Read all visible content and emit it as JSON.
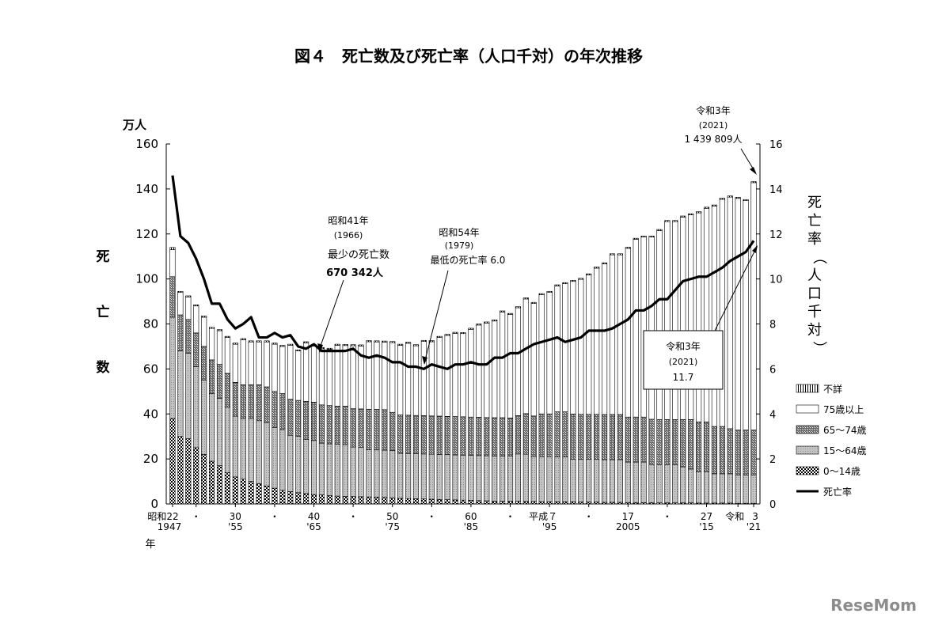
{
  "chart_data": {
    "type": "bar",
    "title": "図４　死亡数及び死亡率（人口千対）の年次推移",
    "ylabel_left_unit": "万人",
    "ylabel_left": "死亡数",
    "ylabel_right": "死亡率（人口千対）",
    "xlabel": "年",
    "ylim_left": [
      0,
      160
    ],
    "ylim_right": [
      0,
      16
    ],
    "yticks_left": [
      0,
      20,
      40,
      60,
      80,
      100,
      120,
      140,
      160
    ],
    "yticks_right": [
      0,
      2,
      4,
      6,
      8,
      10,
      12,
      14,
      16
    ],
    "year_start": 1947,
    "year_end": 2021,
    "x_tick_labels": [
      {
        "year": 1947,
        "era": "昭和22",
        "western": "1947"
      },
      {
        "year": 1950,
        "era": "・",
        "western": ""
      },
      {
        "year": 1955,
        "era": "30",
        "western": "'55"
      },
      {
        "year": 1960,
        "era": "・",
        "western": ""
      },
      {
        "year": 1965,
        "era": "40",
        "western": "'65"
      },
      {
        "year": 1970,
        "era": "・",
        "western": ""
      },
      {
        "year": 1975,
        "era": "50",
        "western": "'75"
      },
      {
        "year": 1980,
        "era": "・",
        "western": ""
      },
      {
        "year": 1985,
        "era": "60",
        "western": "'85"
      },
      {
        "year": 1990,
        "era": "・",
        "western": ""
      },
      {
        "year": 1995,
        "era": "平成７",
        "western": "'95"
      },
      {
        "year": 2000,
        "era": "・",
        "western": ""
      },
      {
        "year": 2005,
        "era": "17",
        "western": "2005"
      },
      {
        "year": 2010,
        "era": "・",
        "western": ""
      },
      {
        "year": 2015,
        "era": "27",
        "western": "'15"
      },
      {
        "year": 2019,
        "era": "令和",
        "western": ""
      },
      {
        "year": 2021,
        "era": "3",
        "western": "'21"
      }
    ],
    "series": [
      {
        "name": "0～14歳",
        "pattern": "checker",
        "values": [
          38,
          30,
          29,
          25,
          22,
          19,
          17,
          14,
          12,
          11,
          10,
          9,
          8,
          7,
          6,
          5.5,
          5,
          4.6,
          4.2,
          4,
          3.7,
          3.5,
          3.4,
          3.3,
          3.2,
          3.1,
          3,
          2.9,
          2.7,
          2.5,
          2.4,
          2.3,
          2.2,
          2.1,
          2,
          1.9,
          1.8,
          1.7,
          1.6,
          1.5,
          1.4,
          1.3,
          1.3,
          1.2,
          1.2,
          1.1,
          1.1,
          1,
          1,
          0.9,
          0.9,
          0.9,
          0.8,
          0.8,
          0.8,
          0.7,
          0.7,
          0.7,
          0.6,
          0.6,
          0.6,
          0.6,
          0.5,
          0.5,
          0.5,
          0.5,
          0.5,
          0.4,
          0.4,
          0.4,
          0.4,
          0.4,
          0.3,
          0.3,
          0.3
        ]
      },
      {
        "name": "15～64歳",
        "pattern": "gray",
        "values": [
          45,
          38,
          38,
          36,
          33,
          30,
          30,
          29,
          27,
          27,
          28,
          28,
          28,
          27,
          27,
          25,
          25,
          24,
          24,
          23,
          23,
          23,
          23,
          22,
          22,
          21,
          21,
          21,
          21,
          20,
          20,
          20,
          20,
          20,
          20,
          20,
          20,
          20,
          20,
          20,
          20,
          20,
          20,
          20,
          21,
          21,
          20,
          20,
          20,
          20,
          20,
          19,
          19,
          19,
          19,
          19,
          19,
          19,
          18,
          18,
          18,
          17,
          17,
          17,
          17,
          16,
          15,
          14,
          14,
          13,
          13,
          13,
          12.5,
          12.5,
          12.5
        ]
      },
      {
        "name": "65～74歳",
        "pattern": "crosshatch",
        "values": [
          18,
          16,
          15,
          15,
          15,
          15,
          15,
          15,
          15,
          15,
          15,
          16,
          16,
          16,
          16,
          16,
          16,
          17,
          17,
          17,
          17,
          17,
          17,
          17,
          17,
          18,
          18,
          18,
          17,
          17,
          17,
          17,
          17,
          17,
          17,
          17,
          17,
          17,
          17,
          17,
          17,
          17,
          17,
          17,
          17,
          18,
          18,
          19,
          19,
          20,
          20,
          20,
          20,
          20,
          20,
          20,
          20,
          20,
          20,
          20,
          20,
          20,
          20,
          20,
          20,
          21,
          22,
          22,
          22,
          21,
          21,
          20,
          20,
          20,
          20
        ]
      },
      {
        "name": "75歳以上",
        "pattern": "white",
        "values": [
          12,
          10,
          10,
          12,
          13,
          14,
          15,
          16,
          17,
          20,
          19,
          19,
          20,
          21,
          21,
          24,
          22,
          26,
          25,
          25,
          25,
          27,
          27,
          28,
          28,
          30,
          30,
          30,
          31,
          31,
          32,
          31,
          33,
          33,
          35,
          36,
          37,
          37,
          39,
          41,
          42,
          43,
          47,
          46,
          48,
          51,
          50,
          53,
          54,
          56,
          57,
          59,
          60,
          62,
          65,
          67,
          71,
          71,
          75,
          79,
          80,
          81,
          84,
          88,
          88,
          90,
          91,
          93,
          95,
          98,
          101,
          103,
          103,
          102,
          110
        ]
      },
      {
        "name": "不詳",
        "pattern": "stripe",
        "values": [
          1,
          0.5,
          0.5,
          0.5,
          0.5,
          0.5,
          0.5,
          0.5,
          0.5,
          0.5,
          0.5,
          0.5,
          0.5,
          0.5,
          0.5,
          0.5,
          0.5,
          0.5,
          0.5,
          0.5,
          0.5,
          0.5,
          0.5,
          0.5,
          0.5,
          0.5,
          0.5,
          0.5,
          0.5,
          0.5,
          0.5,
          0.5,
          0.5,
          0.5,
          0.5,
          0.5,
          0.5,
          0.5,
          0.5,
          0.5,
          0.5,
          0.5,
          0.5,
          0.5,
          0.5,
          0.5,
          0.5,
          0.5,
          0.5,
          0.5,
          0.5,
          0.5,
          0.5,
          0.5,
          0.5,
          0.5,
          0.5,
          0.5,
          0.5,
          0.5,
          0.5,
          0.5,
          0.5,
          0.5,
          0.5,
          0.5,
          0.5,
          0.5,
          0.5,
          0.5,
          0.5,
          0.5,
          0.5,
          0.5,
          0.5
        ]
      }
    ],
    "totals": [
      114,
      95,
      94.5,
      90,
      84,
      77,
      76,
      72,
      69,
      72,
      76,
      68,
      69,
      70,
      69,
      71,
      67,
      68,
      70,
      67,
      68,
      69,
      69,
      71,
      68,
      70,
      70,
      70,
      70,
      69,
      70,
      72,
      72,
      72,
      74,
      75,
      75,
      75,
      75,
      79,
      79,
      78,
      81,
      82,
      84,
      86,
      88,
      88,
      90,
      91,
      92,
      96,
      97,
      97,
      98,
      98,
      99,
      101,
      103,
      105,
      106,
      108,
      110,
      112,
      114,
      116,
      118,
      120,
      122,
      125,
      128,
      130,
      136,
      138,
      144
    ],
    "line": {
      "name": "死亡率",
      "values": [
        14.6,
        11.9,
        11.6,
        10.9,
        10.0,
        8.9,
        8.9,
        8.2,
        7.8,
        8.0,
        8.3,
        7.4,
        7.4,
        7.6,
        7.4,
        7.5,
        7.0,
        6.9,
        7.1,
        6.8,
        6.8,
        6.8,
        6.8,
        6.9,
        6.6,
        6.5,
        6.6,
        6.5,
        6.3,
        6.3,
        6.1,
        6.1,
        6.0,
        6.2,
        6.1,
        6.0,
        6.2,
        6.2,
        6.3,
        6.2,
        6.2,
        6.5,
        6.5,
        6.7,
        6.7,
        6.9,
        7.1,
        7.2,
        7.3,
        7.4,
        7.2,
        7.3,
        7.4,
        7.7,
        7.7,
        7.7,
        7.8,
        8.0,
        8.2,
        8.6,
        8.6,
        8.8,
        9.1,
        9.1,
        9.5,
        9.9,
        10.0,
        10.1,
        10.1,
        10.3,
        10.5,
        10.8,
        11.0,
        11.2,
        11.7
      ]
    },
    "legend": [
      "不詳",
      "75歳以上",
      "65～74歳",
      "15～64歳",
      "0～14歳",
      "死亡率"
    ],
    "legend_position": "right",
    "annotations": {
      "a1966": {
        "line1": "昭和41年",
        "line2": "(1966)",
        "line3": "最少の死亡数",
        "line4": "670 342人"
      },
      "a1979": {
        "line1": "昭和54年",
        "line2": "(1979)",
        "line3": "最低の死亡率 6.0"
      },
      "a2021_count": {
        "line1": "令和3年",
        "line2": "(2021)",
        "line3": "1 439 809人"
      },
      "a2021_rate": {
        "line1": "令和3年",
        "line2": "(2021)",
        "line3": "11.7"
      }
    },
    "grid": false
  },
  "watermark": "ReseMom"
}
